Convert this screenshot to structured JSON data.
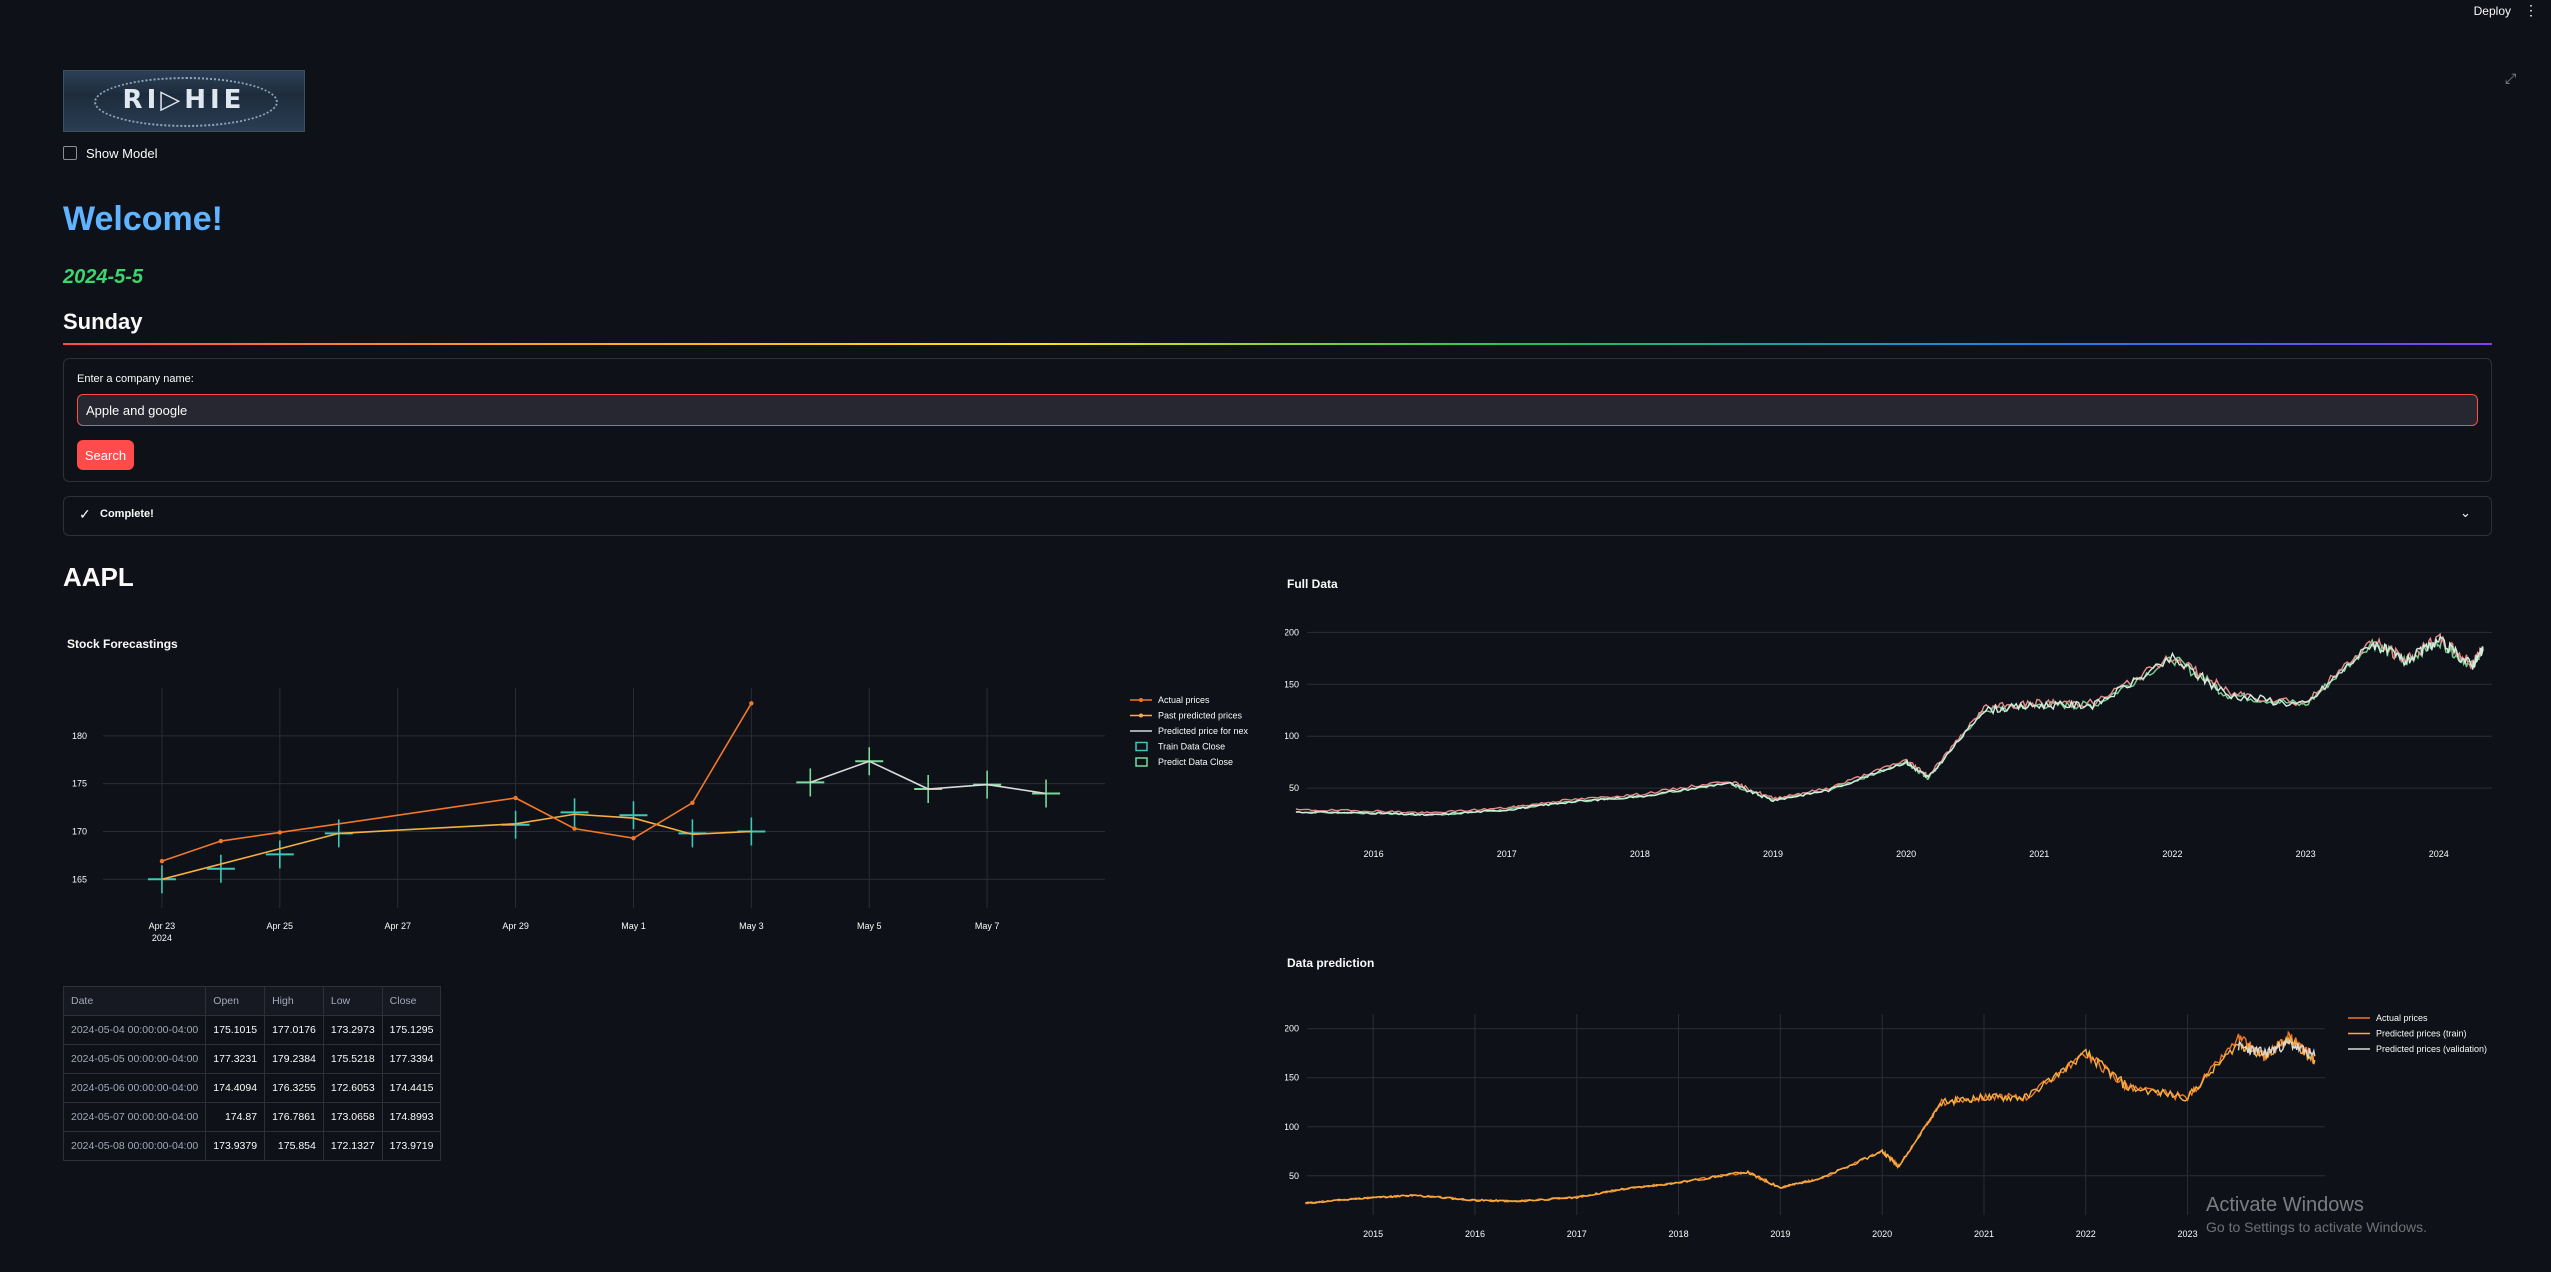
{
  "header": {
    "deploy_label": "Deploy",
    "menu_icon": "kebab-menu-icon"
  },
  "sidebar_toggle": {
    "label": "Show Model",
    "checked": false
  },
  "welcome": "Welcome!",
  "date": "2024-5-5",
  "weekday": "Sunday",
  "search": {
    "label": "Enter a company name:",
    "value": "Apple and google",
    "button_label": "Search"
  },
  "status": {
    "text": "Complete!",
    "icon": "check-icon"
  },
  "ticker": "AAPL",
  "colors": {
    "accent": "#ff4b4b",
    "welcome": "#60b4ff",
    "date": "#3dd56d",
    "actual": "#f0782a",
    "past_pred": "#f5b041",
    "next_day": "#d9d9d9",
    "train_candle": "#3fc7b8",
    "predict_candle": "#7bd99a"
  },
  "forecast": {
    "title": "Stock Forecastings",
    "x_tick_labels": [
      "Apr 23",
      "Apr 25",
      "Apr 27",
      "Apr 29",
      "May 1",
      "May 3",
      "May 5",
      "May 7"
    ],
    "x_year_label": "2024",
    "y_tick_labels": [
      "165",
      "170",
      "175",
      "180"
    ],
    "legend": [
      "Actual prices",
      "Past predicted prices",
      "Predicted price for next day",
      "Train Data Close",
      "Predict Data Close"
    ]
  },
  "chart_data": [
    {
      "type": "line",
      "title": "Stock Forecastings",
      "xlabel": "",
      "ylabel": "",
      "ylim": [
        162,
        185
      ],
      "series": [
        {
          "name": "Actual prices",
          "x": [
            "2024-04-23",
            "2024-04-24",
            "2024-04-25",
            "2024-04-29",
            "2024-04-30",
            "2024-05-01",
            "2024-05-02",
            "2024-05-03"
          ],
          "values": [
            166.9,
            169.0,
            169.9,
            173.5,
            170.3,
            169.3,
            173.0,
            183.4
          ]
        },
        {
          "name": "Past predicted prices",
          "x": [
            "2024-04-23",
            "2024-04-26",
            "2024-04-29",
            "2024-04-30",
            "2024-05-01",
            "2024-05-02",
            "2024-05-03"
          ],
          "values": [
            165.0,
            169.8,
            170.8,
            171.8,
            171.4,
            169.7,
            170.0
          ]
        },
        {
          "name": "Predicted price for next day",
          "x": [
            "2024-05-04",
            "2024-05-05",
            "2024-05-06",
            "2024-05-07",
            "2024-05-08"
          ],
          "values": [
            175.13,
            177.34,
            174.44,
            174.9,
            173.97
          ]
        },
        {
          "name": "Train Data Close",
          "x": [
            "2024-04-23",
            "2024-04-24",
            "2024-04-25",
            "2024-04-26",
            "2024-04-29",
            "2024-04-30",
            "2024-05-01",
            "2024-05-02",
            "2024-05-03"
          ],
          "values": [
            165.0,
            166.1,
            167.6,
            169.8,
            170.7,
            172.0,
            171.7,
            169.8,
            170.0
          ]
        },
        {
          "name": "Predict Data Close",
          "x": [
            "2024-05-04",
            "2024-05-05",
            "2024-05-06",
            "2024-05-07",
            "2024-05-08"
          ],
          "values": [
            175.13,
            177.34,
            174.44,
            174.9,
            173.97
          ]
        }
      ]
    },
    {
      "type": "line",
      "title": "Full Data",
      "x": [
        "2015-06",
        "2016-01",
        "2016-06",
        "2017-01",
        "2017-06",
        "2018-01",
        "2018-09",
        "2019-01",
        "2019-06",
        "2020-01",
        "2020-03",
        "2020-08",
        "2021-01",
        "2021-06",
        "2022-01",
        "2022-06",
        "2023-01",
        "2023-07",
        "2023-10",
        "2024-01",
        "2024-04",
        "2024-05"
      ],
      "series": [
        {
          "name": "",
          "values": [
            27,
            26,
            24,
            29,
            36,
            42,
            55,
            38,
            48,
            75,
            60,
            125,
            130,
            130,
            175,
            140,
            130,
            190,
            172,
            192,
            168,
            183
          ]
        }
      ],
      "ylim": [
        0,
        210
      ]
    },
    {
      "type": "line",
      "title": "Data prediction",
      "x": [
        "2014-05",
        "2015-01",
        "2015-06",
        "2016-01",
        "2016-06",
        "2017-01",
        "2017-06",
        "2018-01",
        "2018-09",
        "2019-01",
        "2019-06",
        "2020-01",
        "2020-03",
        "2020-08",
        "2021-01",
        "2021-06",
        "2022-01",
        "2022-06",
        "2023-01",
        "2023-07",
        "2023-10",
        "2024-01",
        "2024-04"
      ],
      "series": [
        {
          "name": "Actual prices",
          "values": [
            22,
            28,
            30,
            25,
            24,
            28,
            36,
            43,
            54,
            38,
            48,
            75,
            60,
            125,
            130,
            130,
            175,
            140,
            130,
            190,
            172,
            192,
            168
          ]
        },
        {
          "name": "Predicted prices (train)",
          "values": [
            22,
            28,
            30,
            25,
            24,
            28,
            36,
            43,
            54,
            38,
            48,
            75,
            60,
            125,
            130,
            130,
            175,
            140,
            130,
            185,
            172,
            188,
            168
          ]
        },
        {
          "name": "Predicted prices (validation)",
          "values": [
            null,
            null,
            null,
            null,
            null,
            null,
            null,
            null,
            null,
            null,
            null,
            null,
            null,
            null,
            null,
            null,
            null,
            null,
            null,
            182,
            175,
            185,
            172
          ]
        }
      ],
      "ylim": [
        10,
        215
      ]
    }
  ],
  "full_data": {
    "title": "Full Data",
    "y_tick_labels": [
      "50",
      "100",
      "150",
      "200"
    ],
    "x_tick_labels": [
      "2016",
      "2017",
      "2018",
      "2019",
      "2020",
      "2021",
      "2022",
      "2023",
      "2024"
    ]
  },
  "prediction": {
    "title": "Data prediction",
    "y_tick_labels": [
      "50",
      "100",
      "150",
      "200"
    ],
    "x_tick_labels": [
      "2015",
      "2016",
      "2017",
      "2018",
      "2019",
      "2020",
      "2021",
      "2022",
      "2023"
    ],
    "legend": [
      "Actual prices",
      "Predicted prices (train)",
      "Predicted prices (validation)"
    ]
  },
  "table": {
    "headers": [
      "Date",
      "Open",
      "High",
      "Low",
      "Close"
    ],
    "rows": [
      [
        "2024-05-04 00:00:00-04:00",
        "175.1015",
        "177.0176",
        "173.2973",
        "175.1295"
      ],
      [
        "2024-05-05 00:00:00-04:00",
        "177.3231",
        "179.2384",
        "175.5218",
        "177.3394"
      ],
      [
        "2024-05-06 00:00:00-04:00",
        "174.4094",
        "176.3255",
        "172.6053",
        "174.4415"
      ],
      [
        "2024-05-07 00:00:00-04:00",
        "174.87",
        "176.7861",
        "173.0658",
        "174.8993"
      ],
      [
        "2024-05-08 00:00:00-04:00",
        "173.9379",
        "175.854",
        "172.1327",
        "173.9719"
      ]
    ]
  },
  "watermark": {
    "line1": "Activate Windows",
    "line2": "Go to Settings to activate Windows."
  }
}
